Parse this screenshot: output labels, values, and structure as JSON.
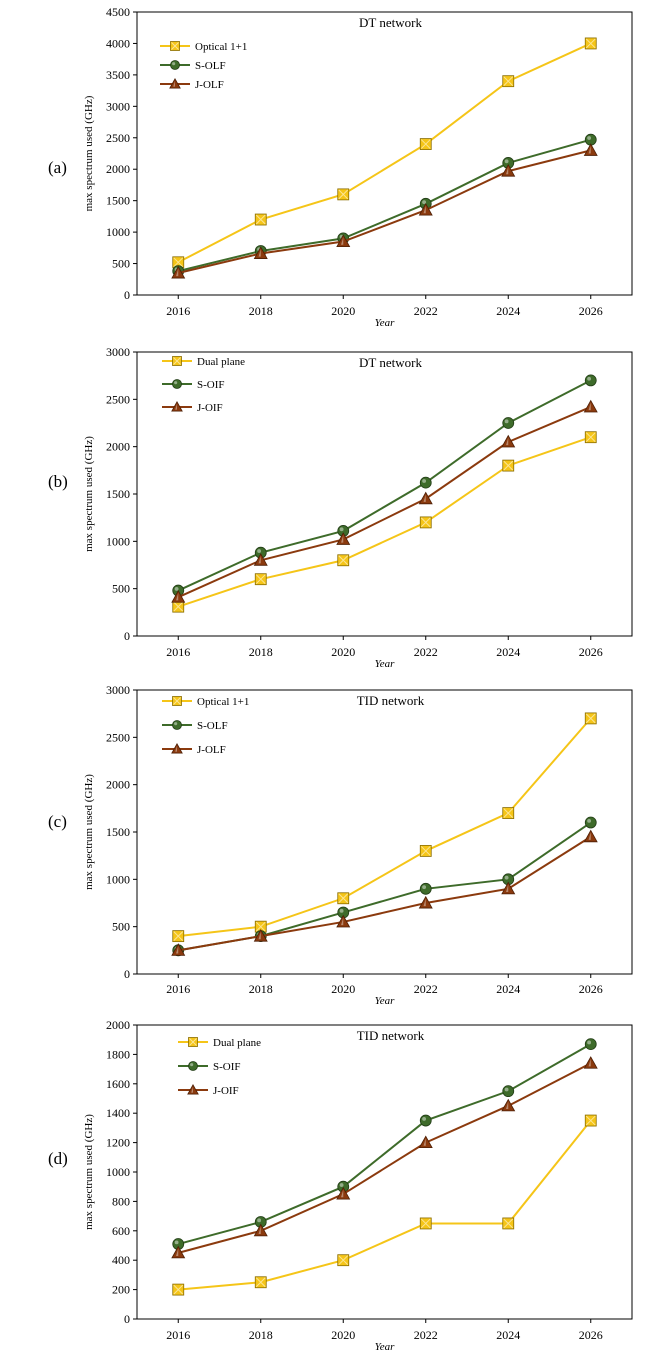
{
  "panels": [
    {
      "label": "(a)"
    },
    {
      "label": "(b)"
    },
    {
      "label": "(c)"
    },
    {
      "label": "(d)"
    }
  ],
  "chart_data": [
    {
      "type": "line",
      "title": "DT network",
      "xlabel": "Year",
      "ylabel": "max spectrum used (GHz)",
      "ylim": [
        0,
        4500
      ],
      "yticks": [
        0,
        500,
        1000,
        1500,
        2000,
        2500,
        3000,
        3500,
        4000,
        4500
      ],
      "x": [
        2016,
        2018,
        2020,
        2022,
        2024,
        2026
      ],
      "grid": false,
      "legend": "top-left",
      "series": [
        {
          "name": "Optical 1+1",
          "marker": "square",
          "color": "#F5C518",
          "values": [
            520,
            1200,
            1600,
            2400,
            3400,
            4000
          ]
        },
        {
          "name": "S-OLF",
          "marker": "circle",
          "color": "#3E6B2A",
          "values": [
            380,
            700,
            900,
            1450,
            2100,
            2470
          ]
        },
        {
          "name": "J-OLF",
          "marker": "triangle",
          "color": "#8B3A0E",
          "values": [
            350,
            660,
            850,
            1350,
            1970,
            2300
          ]
        }
      ]
    },
    {
      "type": "line",
      "title": "DT network",
      "xlabel": "Year",
      "ylabel": "max spectrum used (GHz)",
      "ylim": [
        0,
        3000
      ],
      "yticks": [
        0,
        500,
        1000,
        1500,
        2000,
        2500,
        3000
      ],
      "x": [
        2016,
        2018,
        2020,
        2022,
        2024,
        2026
      ],
      "grid": false,
      "legend": "top-left",
      "series": [
        {
          "name": "Dual plane",
          "marker": "square",
          "color": "#F5C518",
          "values": [
            310,
            600,
            800,
            1200,
            1800,
            2100
          ]
        },
        {
          "name": "S-OIF",
          "marker": "circle",
          "color": "#3E6B2A",
          "values": [
            480,
            880,
            1110,
            1620,
            2250,
            2700
          ]
        },
        {
          "name": "J-OIF",
          "marker": "triangle",
          "color": "#8B3A0E",
          "values": [
            410,
            800,
            1020,
            1450,
            2050,
            2420
          ]
        }
      ]
    },
    {
      "type": "line",
      "title": "TID network",
      "xlabel": "Year",
      "ylabel": "max spectrum used (GHz)",
      "ylim": [
        0,
        3000
      ],
      "yticks": [
        0,
        500,
        1000,
        1500,
        2000,
        2500,
        3000
      ],
      "x": [
        2016,
        2018,
        2020,
        2022,
        2024,
        2026
      ],
      "grid": false,
      "legend": "top-left",
      "series": [
        {
          "name": "Optical 1+1",
          "marker": "square",
          "color": "#F5C518",
          "values": [
            400,
            500,
            800,
            1300,
            1700,
            2700
          ]
        },
        {
          "name": "S-OLF",
          "marker": "circle",
          "color": "#3E6B2A",
          "values": [
            250,
            400,
            650,
            900,
            1000,
            1600
          ]
        },
        {
          "name": "J-OLF",
          "marker": "triangle",
          "color": "#8B3A0E",
          "values": [
            250,
            400,
            550,
            750,
            900,
            1450
          ]
        }
      ]
    },
    {
      "type": "line",
      "title": "TID network",
      "xlabel": "Year",
      "ylabel": "max spectrum used (GHz)",
      "ylim": [
        0,
        2000
      ],
      "yticks": [
        0,
        200,
        400,
        600,
        800,
        1000,
        1200,
        1400,
        1600,
        1800,
        2000
      ],
      "x": [
        2016,
        2018,
        2020,
        2022,
        2024,
        2026
      ],
      "grid": false,
      "legend": "top-left",
      "series": [
        {
          "name": "Dual plane",
          "marker": "square",
          "color": "#F5C518",
          "values": [
            200,
            250,
            400,
            650,
            650,
            1350
          ]
        },
        {
          "name": "S-OIF",
          "marker": "circle",
          "color": "#3E6B2A",
          "values": [
            510,
            660,
            900,
            1350,
            1550,
            1870
          ]
        },
        {
          "name": "J-OIF",
          "marker": "triangle",
          "color": "#8B3A0E",
          "values": [
            450,
            600,
            850,
            1200,
            1450,
            1740
          ]
        }
      ]
    }
  ]
}
